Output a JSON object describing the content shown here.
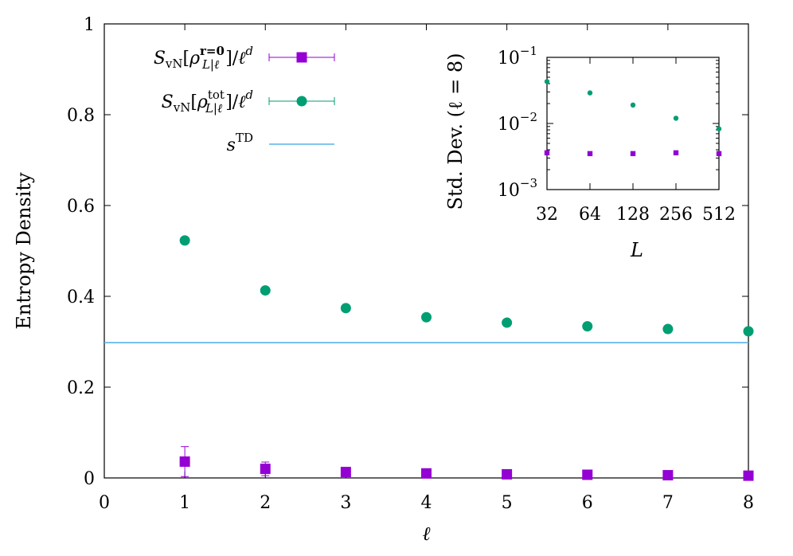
{
  "chart_data": [
    {
      "type": "scatter",
      "title": "",
      "xlabel": "ℓ",
      "ylabel": "Entropy Density",
      "xlim": [
        0,
        8
      ],
      "ylim": [
        0,
        1
      ],
      "xticks": [
        0,
        1,
        2,
        3,
        4,
        5,
        6,
        7,
        8
      ],
      "yticks": [
        0,
        0.2,
        0.4,
        0.6,
        0.8,
        1
      ],
      "ytick_labels": [
        "0",
        "0.2",
        "0.4",
        "0.6",
        "0.8",
        "1"
      ],
      "legend_position": "top-left",
      "series": [
        {
          "name": "S_vN[ρ_{L|ℓ}^{r=0}]/ℓ^d",
          "marker": "square",
          "color": "#9400d3",
          "x": [
            1,
            2,
            3,
            4,
            5,
            6,
            7,
            8
          ],
          "y": [
            0.036,
            0.02,
            0.013,
            0.01,
            0.008,
            0.007,
            0.006,
            0.005
          ],
          "yerr": [
            0.033,
            0.015,
            0.004,
            0.003,
            0.002,
            0.002,
            0.002,
            0.002
          ]
        },
        {
          "name": "S_vN[ρ_{L|ℓ}^{tot}]/ℓ^d",
          "marker": "circle",
          "color": "#009e73",
          "x": [
            1,
            2,
            3,
            4,
            5,
            6,
            7,
            8
          ],
          "y": [
            0.523,
            0.413,
            0.374,
            0.354,
            0.342,
            0.334,
            0.328,
            0.323
          ]
        },
        {
          "name": "s^TD",
          "marker": "line",
          "color": "#56b4e9",
          "y_const": 0.298
        }
      ]
    },
    {
      "type": "scatter",
      "title": "",
      "xlabel": "L",
      "ylabel": "Std. Dev. (ℓ = 8)",
      "xscale": "log2",
      "yscale": "log10",
      "xticks": [
        32,
        64,
        128,
        256,
        512
      ],
      "xlim": [
        32,
        512
      ],
      "ylim": [
        0.001,
        0.1
      ],
      "series": [
        {
          "name": "",
          "marker": "circle",
          "color": "#009e73",
          "x": [
            32,
            64,
            128,
            256,
            512
          ],
          "y": [
            0.043,
            0.029,
            0.019,
            0.012,
            0.0083
          ]
        },
        {
          "name": "",
          "marker": "square",
          "color": "#9400d3",
          "x": [
            32,
            64,
            128,
            256,
            512
          ],
          "y": [
            0.0036,
            0.0035,
            0.0035,
            0.0036,
            0.0035
          ]
        }
      ]
    }
  ]
}
